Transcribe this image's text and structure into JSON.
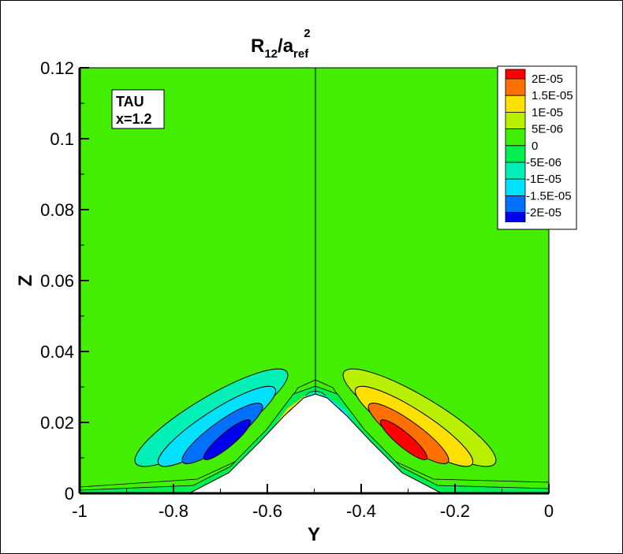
{
  "chart_data": {
    "type": "contour",
    "title": {
      "main": "R",
      "sub1": "12",
      "mid": "/a",
      "sub2": "ref",
      "sup": "2"
    },
    "xlabel": "Y",
    "ylabel": "Z",
    "xlim": [
      -1,
      0
    ],
    "ylim": [
      0,
      0.12
    ],
    "xticks": [
      "-1",
      "-0.8",
      "-0.6",
      "-0.4",
      "-0.2",
      "0"
    ],
    "xtick_values": [
      -1,
      -0.8,
      -0.6,
      -0.4,
      -0.2,
      0
    ],
    "yticks": [
      "0",
      "0.02",
      "0.04",
      "0.06",
      "0.08",
      "0.1",
      "0.12"
    ],
    "ytick_values": [
      0,
      0.02,
      0.04,
      0.06,
      0.08,
      0.1,
      0.12
    ],
    "annotation": [
      "TAU",
      "x=1.2"
    ],
    "legend_position": "top-right",
    "legend": [
      {
        "label": "2E-05",
        "color": "#ff0000"
      },
      {
        "label": "1.5E-05",
        "color": "#ff7000"
      },
      {
        "label": "1E-05",
        "color": "#ffe000"
      },
      {
        "label": "5E-06",
        "color": "#b8f000"
      },
      {
        "label": "0",
        "color": "#40f000"
      },
      {
        "label": "-5E-06",
        "color": "#00f050"
      },
      {
        "label": "-1E-05",
        "color": "#00f0b8"
      },
      {
        "label": "-1.5E-05",
        "color": "#00e0ff"
      },
      {
        "label": "-2E-05",
        "color": "#0070ff"
      }
    ],
    "legend_bottom_color": "#0000f0",
    "background_color": "#44ee00"
  }
}
